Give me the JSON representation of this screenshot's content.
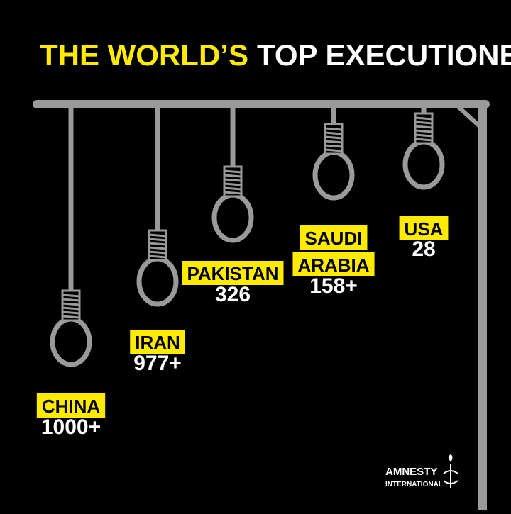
{
  "title": {
    "highlight": "THE WORLD’S",
    "rest": "TOP EXECUTIONERS"
  },
  "items": [
    {
      "lines": [
        "CHINA"
      ],
      "value": "1000+"
    },
    {
      "lines": [
        "IRAN"
      ],
      "value": "977+"
    },
    {
      "lines": [
        "PAKISTAN"
      ],
      "value": "326"
    },
    {
      "lines": [
        "SAUDI",
        "ARABIA"
      ],
      "value": "158+"
    },
    {
      "lines": [
        "USA"
      ],
      "value": "28"
    }
  ],
  "logo": {
    "line1": "AMNESTY",
    "line2": "INTERNATIONAL"
  }
}
